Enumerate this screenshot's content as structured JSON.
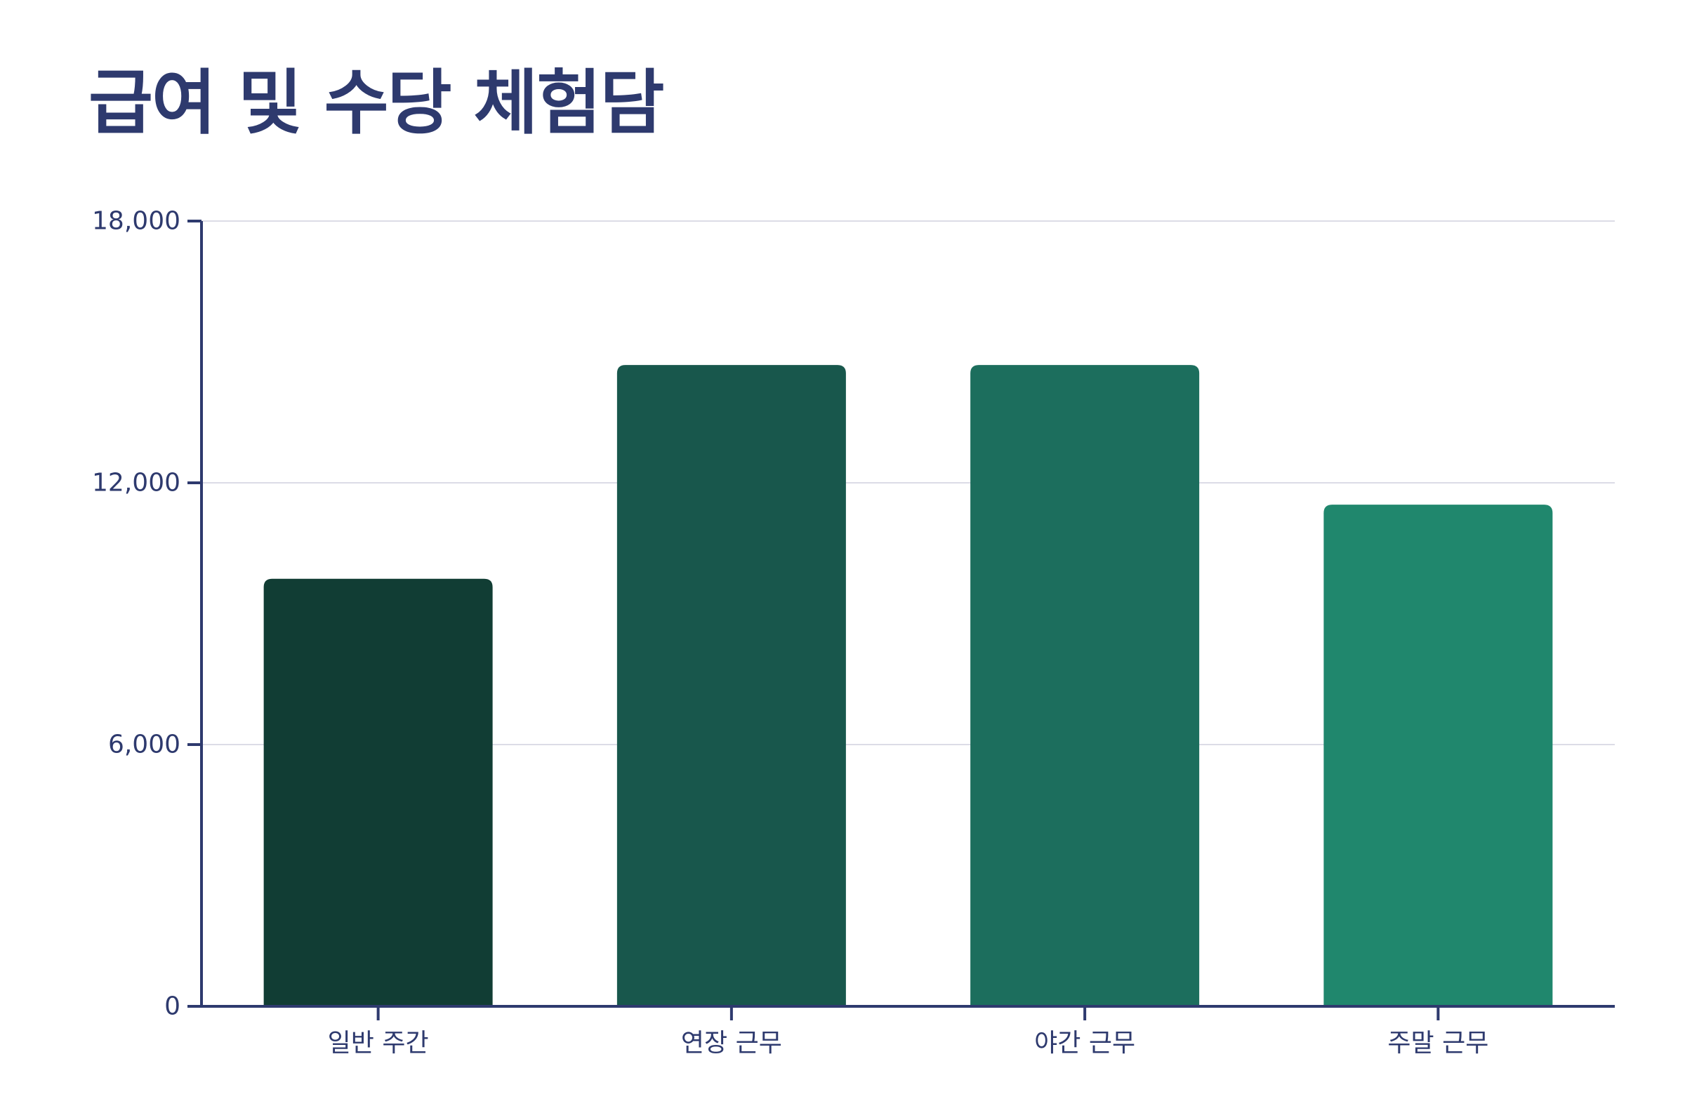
{
  "chart_data": {
    "type": "bar",
    "title": "급여 및 수당 체험담",
    "xlabel": "",
    "ylabel": "",
    "categories": [
      "일반 주간",
      "연장 근무",
      "야간 근무",
      "주말 근무"
    ],
    "values": [
      9800,
      14700,
      14700,
      11500
    ],
    "ylim": [
      0,
      18000
    ],
    "yticks": [
      0,
      6000,
      12000,
      18000
    ],
    "ytick_labels": [
      "0",
      "6,000",
      "12,000",
      "18,000"
    ],
    "grid": true,
    "legend": "none",
    "colors": [
      "#113d34",
      "#18574c",
      "#1c6e5d",
      "#20876d"
    ],
    "axis_color": "#2e3a6e",
    "grid_color": "#dcdce6"
  }
}
